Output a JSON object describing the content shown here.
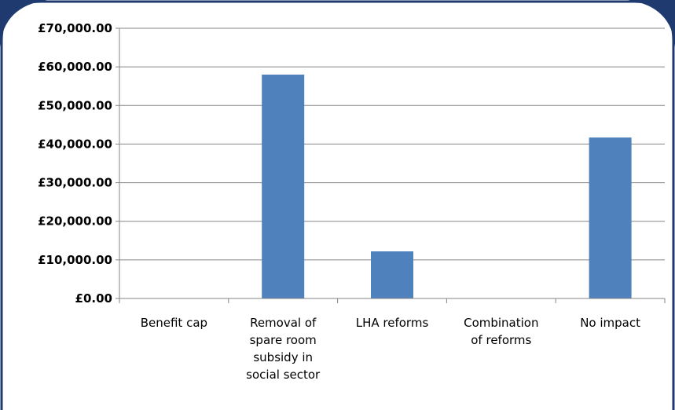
{
  "chart_data": {
    "type": "bar",
    "title": "",
    "xlabel": "",
    "ylabel": "",
    "categories": [
      [
        "Benefit cap"
      ],
      [
        "Removal of",
        "spare room",
        "subsidy in",
        "social sector"
      ],
      [
        "LHA reforms"
      ],
      [
        "Combination",
        "of reforms"
      ],
      [
        "No impact"
      ]
    ],
    "values": [
      0,
      58000,
      12200,
      0,
      41700
    ],
    "ylim": [
      0,
      70000
    ],
    "yticks": [
      0,
      10000,
      20000,
      30000,
      40000,
      50000,
      60000,
      70000
    ],
    "ytick_labels": [
      "£0.00",
      "£10,000.00",
      "£20,000.00",
      "£30,000.00",
      "£40,000.00",
      "£50,000.00",
      "£60,000.00",
      "£70,000.00"
    ],
    "grid": true,
    "legend": "none",
    "colors": {
      "bar": "#4f81bd",
      "grid": "#868686",
      "frame": "#1f3a6e"
    }
  }
}
